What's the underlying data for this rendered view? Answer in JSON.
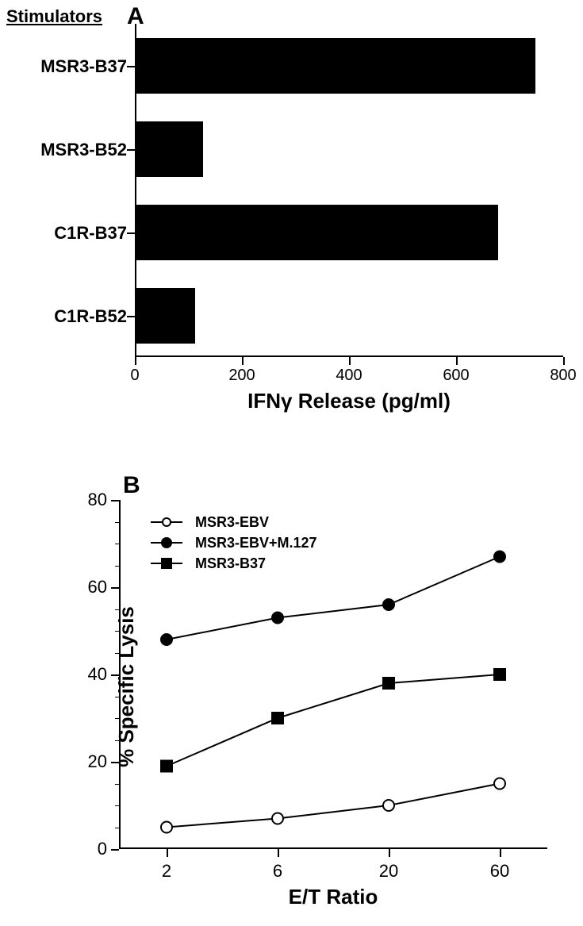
{
  "stimulators_heading": "Stimulators",
  "panelA": {
    "letter": "A",
    "type": "bar-horizontal",
    "x_label": "IFNγ Release (pg/ml)",
    "x_lim": [
      0,
      800
    ],
    "x_ticks": [
      0,
      200,
      400,
      600,
      800
    ],
    "bar_color": "#000000",
    "background_color": "#ffffff",
    "categories": [
      "MSR3-B37",
      "MSR3-B52",
      "C1R-B37",
      "C1R-B52"
    ],
    "values": [
      745,
      125,
      675,
      110
    ],
    "label_fontsize": 22,
    "axis_label_fontsize": 26
  },
  "panelB": {
    "letter": "B",
    "type": "line",
    "x_label": "E/T Ratio",
    "y_label": "% Specific Lysis",
    "x_ticks": [
      2,
      6,
      20,
      60
    ],
    "y_lim": [
      0,
      80
    ],
    "y_ticks": [
      0,
      20,
      40,
      60,
      80
    ],
    "y_minor_step": 5,
    "background_color": "#ffffff",
    "line_color": "#000000",
    "line_width": 2,
    "marker_size": 14,
    "label_fontsize": 22,
    "axis_label_fontsize": 26,
    "legend_fontsize": 18,
    "series": [
      {
        "name": "MSR3-EBV",
        "marker": "circle-open",
        "x": [
          2,
          6,
          20,
          60
        ],
        "y": [
          5,
          7,
          10,
          15
        ]
      },
      {
        "name": "MSR3-EBV+M.127",
        "marker": "circle-filled",
        "x": [
          2,
          6,
          20,
          60
        ],
        "y": [
          48,
          53,
          56,
          67
        ]
      },
      {
        "name": "MSR3-B37",
        "marker": "square-filled",
        "x": [
          2,
          6,
          20,
          60
        ],
        "y": [
          19,
          30,
          38,
          40
        ]
      }
    ]
  }
}
